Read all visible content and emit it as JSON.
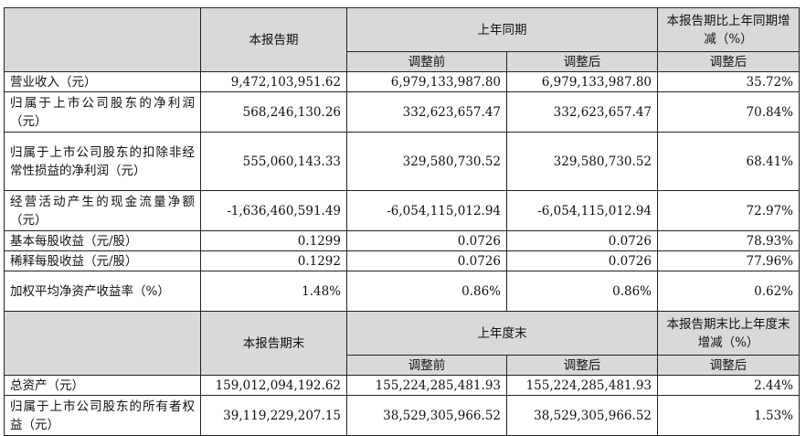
{
  "header_period": {
    "col1": "本报告期",
    "prior_group": "上年同期",
    "change": "本报告期比上年同期增减（%）",
    "before": "调整前",
    "after": "调整后",
    "change_sub": "调整后"
  },
  "income_rows": [
    {
      "label": "营业收入（元）",
      "current": "9,472,103,951.62",
      "before": "6,979,133,987.80",
      "after": "6,979,133,987.80",
      "change": "35.72%"
    },
    {
      "label": "归属于上市公司股东的净利润（元）",
      "current": "568,246,130.26",
      "before": "332,623,657.47",
      "after": "332,623,657.47",
      "change": "70.84%"
    },
    {
      "label": "归属于上市公司股东的扣除非经常性损益的净利润（元）",
      "current": "555,060,143.33",
      "before": "329,580,730.52",
      "after": "329,580,730.52",
      "change": "68.41%"
    },
    {
      "label": "经营活动产生的现金流量净额（元）",
      "current": "-1,636,460,591.49",
      "before": "-6,054,115,012.94",
      "after": "-6,054,115,012.94",
      "change": "72.97%"
    },
    {
      "label": "基本每股收益（元/股）",
      "current": "0.1299",
      "before": "0.0726",
      "after": "0.0726",
      "change": "78.93%"
    },
    {
      "label": "稀释每股收益（元/股）",
      "current": "0.1292",
      "before": "0.0726",
      "after": "0.0726",
      "change": "77.96%"
    },
    {
      "label": "加权平均净资产收益率（%）",
      "current": "1.48%",
      "before": "0.86%",
      "after": "0.86%",
      "change": "0.62%"
    }
  ],
  "header_end": {
    "col1": "本报告期末",
    "prior_group": "上年度末",
    "change": "本报告期末比上年度末增减（%）",
    "before": "调整前",
    "after": "调整后",
    "change_sub": "调整后"
  },
  "balance_rows": [
    {
      "label": "总资产（元）",
      "current": "159,012,094,192.62",
      "before": "155,224,285,481.93",
      "after": "155,224,285,481.93",
      "change": "2.44%"
    },
    {
      "label": "归属于上市公司股东的所有者权益（元）",
      "current": "39,119,229,207.15",
      "before": "38,529,305,966.52",
      "after": "38,529,305,966.52",
      "change": "1.53%"
    }
  ]
}
